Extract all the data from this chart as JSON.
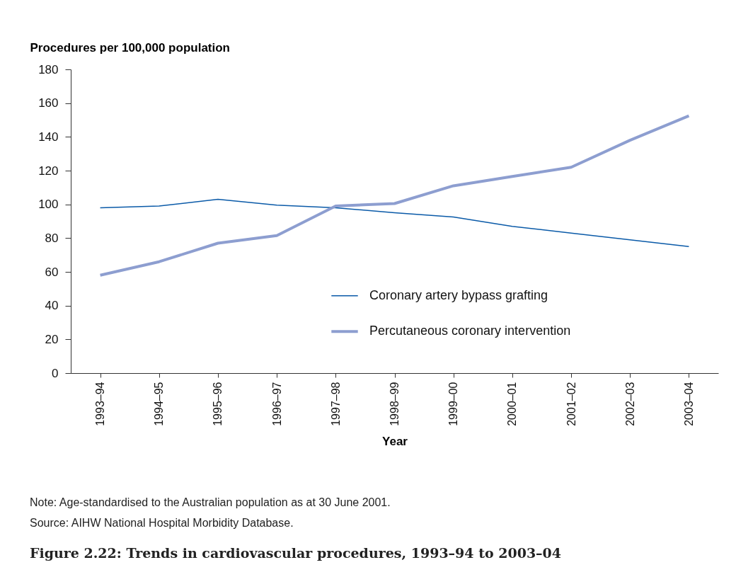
{
  "chart_data": {
    "type": "line",
    "title": "Figure 2.22: Trends in cardiovascular procedures, 1993–94 to 2003–04",
    "xlabel": "Year",
    "ylabel": "Procedures per 100,000 population",
    "categories": [
      "1993–94",
      "1994–95",
      "1995–96",
      "1996–97",
      "1997–98",
      "1998–99",
      "1999–00",
      "2000–01",
      "2001–02",
      "2002–03",
      "2003–04"
    ],
    "series": [
      {
        "name": "Coronary artery bypass grafting",
        "color": "#0a5aa8",
        "values": [
          98,
          99,
          103,
          99.5,
          98,
          95,
          92.5,
          87,
          83,
          79,
          75
        ]
      },
      {
        "name": "Percutaneous coronary intervention",
        "color": "#8d9ed0",
        "values": [
          58,
          66,
          77,
          81.5,
          99,
          100.5,
          111,
          116.5,
          122,
          138,
          152.5
        ]
      }
    ],
    "ylim": [
      0,
      180
    ],
    "yticks": [
      0,
      20,
      40,
      60,
      80,
      100,
      120,
      140,
      160,
      180
    ],
    "grid": false,
    "legend": "right",
    "marker": "none",
    "line_style": "solid",
    "annotations": [
      "Note: Age-standardised to the Australian population as at 30 June 2001.",
      "Source: AIHW National Hospital Morbidity Database."
    ]
  }
}
